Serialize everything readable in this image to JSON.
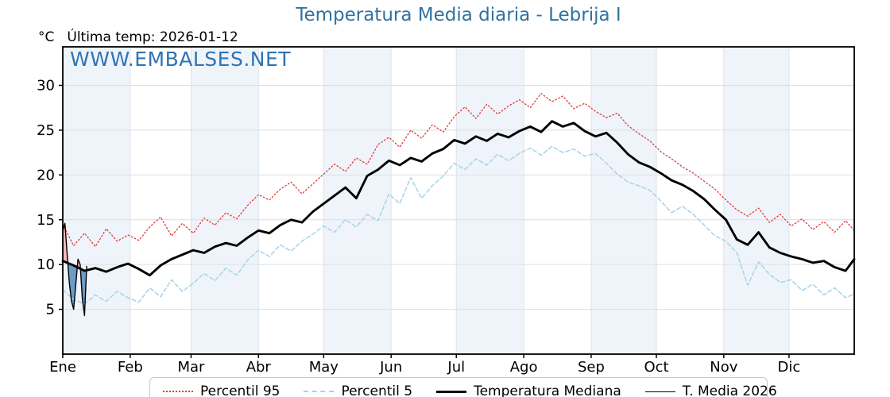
{
  "header": {
    "units_label": "°C",
    "last_temp_label": "Última temp: 2026-01-12",
    "watermark": "WWW.EMBALSES.NET"
  },
  "colors": {
    "title": "#31719f",
    "watermark": "#2f74b3",
    "band": "#eff4fa",
    "grid_h": "#dcdfe3",
    "grid_v": "#dde2e8",
    "frame": "#000000",
    "p95": "#e23a3a",
    "p5": "#a6d3e8",
    "median": "#000000",
    "t2026": "#000000",
    "fill_above": "#f3b3b5",
    "fill_below": "#5e92c2"
  },
  "chart_data": {
    "type": "line",
    "title": "Temperatura Media diaria - Lebrija I",
    "ylabel": "°C",
    "ylim": [
      0,
      34.3
    ],
    "yticks": [
      5,
      10,
      15,
      20,
      25,
      30
    ],
    "x_domain_days": [
      1,
      365
    ],
    "month_labels": [
      "Ene",
      "Feb",
      "Mar",
      "Abr",
      "May",
      "Jun",
      "Jul",
      "Ago",
      "Sep",
      "Oct",
      "Nov",
      "Dic"
    ],
    "month_start_days": [
      1,
      32,
      60,
      91,
      121,
      152,
      182,
      213,
      244,
      274,
      305,
      335
    ],
    "shaded_month_indices": [
      0,
      2,
      4,
      6,
      8,
      10
    ],
    "grid": true,
    "legend_position": "bottom",
    "sample_days": [
      1,
      6,
      11,
      16,
      21,
      26,
      31,
      36,
      41,
      46,
      51,
      56,
      61,
      66,
      71,
      76,
      81,
      86,
      91,
      96,
      101,
      106,
      111,
      116,
      121,
      126,
      131,
      136,
      141,
      146,
      151,
      156,
      161,
      166,
      171,
      176,
      181,
      186,
      191,
      196,
      201,
      206,
      211,
      216,
      221,
      226,
      231,
      236,
      241,
      246,
      251,
      256,
      261,
      266,
      271,
      276,
      281,
      286,
      291,
      296,
      301,
      306,
      311,
      316,
      321,
      326,
      331,
      336,
      341,
      346,
      351,
      356,
      361,
      365
    ],
    "series": [
      {
        "name": "Percentil 95",
        "style": "dotted-red-thin",
        "days_key": "sample_days",
        "values": [
          14.5,
          12.1,
          13.5,
          12.0,
          14.0,
          12.6,
          13.3,
          12.7,
          14.2,
          15.3,
          13.2,
          14.6,
          13.5,
          15.2,
          14.4,
          15.8,
          15.1,
          16.6,
          17.8,
          17.2,
          18.4,
          19.2,
          17.9,
          19.0,
          20.1,
          21.2,
          20.4,
          21.9,
          21.2,
          23.4,
          24.2,
          23.1,
          25.0,
          24.1,
          25.6,
          24.8,
          26.5,
          27.6,
          26.3,
          27.9,
          26.8,
          27.7,
          28.4,
          27.5,
          29.1,
          28.2,
          28.8,
          27.4,
          28.0,
          27.1,
          26.4,
          26.9,
          25.5,
          24.6,
          23.8,
          22.6,
          21.8,
          20.9,
          20.2,
          19.3,
          18.4,
          17.2,
          16.1,
          15.4,
          16.3,
          14.7,
          15.6,
          14.3,
          15.1,
          13.9,
          14.8,
          13.6,
          14.9,
          13.8
        ]
      },
      {
        "name": "Percentil 5",
        "style": "dashed-lightblue-thin",
        "days_key": "sample_days",
        "values": [
          7.2,
          6.1,
          5.6,
          6.6,
          5.9,
          7.0,
          6.3,
          5.8,
          7.4,
          6.4,
          8.3,
          7.0,
          7.9,
          9.0,
          8.2,
          9.6,
          8.8,
          10.5,
          11.6,
          10.9,
          12.2,
          11.5,
          12.6,
          13.4,
          14.3,
          13.6,
          15.0,
          14.2,
          15.6,
          14.9,
          17.9,
          16.8,
          19.7,
          17.4,
          18.8,
          19.9,
          21.3,
          20.6,
          21.8,
          21.1,
          22.3,
          21.6,
          22.4,
          23.0,
          22.2,
          23.2,
          22.5,
          22.9,
          22.1,
          22.4,
          21.3,
          20.1,
          19.2,
          18.8,
          18.3,
          17.1,
          15.8,
          16.5,
          15.6,
          14.4,
          13.2,
          12.6,
          11.3,
          7.7,
          10.3,
          8.9,
          8.0,
          8.3,
          7.1,
          7.8,
          6.6,
          7.4,
          6.3,
          6.7
        ]
      },
      {
        "name": "Temperatura Mediana",
        "style": "solid-black-thick",
        "days_key": "sample_days",
        "values": [
          10.4,
          9.9,
          9.3,
          9.6,
          9.2,
          9.7,
          10.1,
          9.5,
          8.8,
          9.9,
          10.6,
          11.1,
          11.6,
          11.3,
          12.0,
          12.4,
          12.1,
          13.0,
          13.8,
          13.5,
          14.4,
          15.0,
          14.7,
          15.9,
          16.8,
          17.7,
          18.6,
          17.4,
          19.9,
          20.6,
          21.6,
          21.1,
          21.9,
          21.5,
          22.4,
          22.9,
          23.9,
          23.5,
          24.3,
          23.8,
          24.6,
          24.2,
          24.9,
          25.4,
          24.8,
          26.0,
          25.4,
          25.8,
          24.9,
          24.3,
          24.7,
          23.6,
          22.3,
          21.4,
          20.9,
          20.2,
          19.4,
          18.9,
          18.2,
          17.3,
          16.1,
          15.0,
          12.8,
          12.2,
          13.6,
          11.9,
          11.3,
          10.9,
          10.6,
          10.2,
          10.4,
          9.7,
          9.3,
          10.6
        ]
      },
      {
        "name": "T. Media 2026",
        "style": "solid-black-thin",
        "days": [
          1,
          2,
          3,
          4,
          5,
          6,
          7,
          8,
          9,
          10,
          11,
          12
        ],
        "values": [
          13.8,
          14.6,
          11.2,
          8.0,
          5.9,
          5.0,
          7.8,
          10.6,
          10.0,
          6.2,
          4.3,
          9.8
        ],
        "fill_vs": "Temperatura Mediana"
      }
    ],
    "legend": [
      "Percentil 95",
      "Percentil 5",
      "Temperatura Mediana",
      "T. Media 2026"
    ]
  }
}
